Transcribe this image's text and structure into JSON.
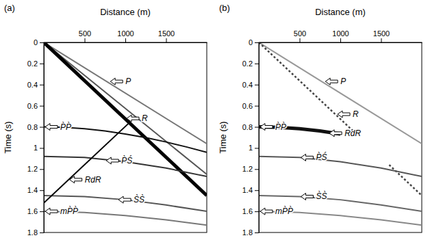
{
  "chart_data": [
    {
      "type": "line",
      "panel_label": "(a)",
      "x_label": "Distance (m)",
      "y_label": "Time (s)",
      "xlim": [
        0,
        2000
      ],
      "xticks": [
        500,
        1000,
        1500
      ],
      "ylim": [
        1.8,
        0
      ],
      "yticks": [
        0,
        0.2,
        0.4,
        0.6,
        0.8,
        1,
        1.2,
        1.4,
        1.6,
        1.8
      ],
      "series": [
        {
          "color": "#777777",
          "line_style": "solid",
          "x": [
            0,
            2000
          ],
          "values": [
            0,
            0.96
          ]
        },
        {
          "color": "#555555",
          "line_style": "solid",
          "x": [
            0,
            2000
          ],
          "values": [
            0,
            1.25
          ]
        },
        {
          "color": "#000000",
          "line_style": "thick",
          "x": [
            0,
            2000
          ],
          "values": [
            0,
            1.45
          ]
        },
        {
          "color": "#111111",
          "line_style": "solid",
          "x": [
            0,
            250,
            500,
            750,
            1000,
            1250,
            1500,
            1750,
            2000
          ],
          "values": [
            0.8,
            0.804,
            0.817,
            0.838,
            0.867,
            0.902,
            0.943,
            0.99,
            1.041
          ]
        },
        {
          "color": "#333333",
          "line_style": "solid",
          "x": [
            0,
            500,
            1000,
            1500,
            2000
          ],
          "values": [
            1.08,
            1.09,
            1.13,
            1.19,
            1.27
          ]
        },
        {
          "color": "#555555",
          "line_style": "solid",
          "x": [
            0,
            500,
            1000,
            1500,
            2000
          ],
          "values": [
            1.45,
            1.46,
            1.49,
            1.54,
            1.6
          ]
        },
        {
          "color": "#777777",
          "line_style": "solid",
          "x": [
            0,
            500,
            1000,
            1500,
            2000
          ],
          "values": [
            1.6,
            1.61,
            1.64,
            1.68,
            1.73
          ]
        },
        {
          "color": "#000000",
          "line_style": "solid",
          "x": [
            0,
            1050
          ],
          "values": [
            1.52,
            0.76
          ]
        }
      ],
      "annotations": [
        {
          "text": "P",
          "x": 800,
          "y": 0.37
        },
        {
          "text": "R",
          "x": 1000,
          "y": 0.72
        },
        {
          "text": "P̀P̀",
          "x": 0,
          "y": 0.8
        },
        {
          "text": "P̀Ś",
          "x": 750,
          "y": 1.12
        },
        {
          "text": "RdR",
          "x": 300,
          "y": 1.3
        },
        {
          "text": "S̀S̀",
          "x": 900,
          "y": 1.49
        },
        {
          "text": "mP̀P̀",
          "x": 0,
          "y": 1.6
        }
      ]
    },
    {
      "type": "line",
      "panel_label": "(b)",
      "x_label": "Distance (m)",
      "y_label": "Time (s)",
      "xlim": [
        0,
        2000
      ],
      "xticks": [
        500,
        1000,
        1500
      ],
      "ylim": [
        1.8,
        0
      ],
      "yticks": [
        0,
        0.2,
        0.4,
        0.6,
        0.8,
        1,
        1.2,
        1.4,
        1.6,
        1.8
      ],
      "series": [
        {
          "color": "#999999",
          "line_style": "solid",
          "x": [
            0,
            2000
          ],
          "values": [
            0,
            0.96
          ]
        },
        {
          "color": "#444444",
          "line_style": "dotted",
          "x": [
            0,
            1200,
            1400,
            1600,
            2000
          ],
          "values": [
            0,
            0.87,
            null,
            1.16,
            1.45
          ]
        },
        {
          "color": "#111111",
          "line_style": "thick",
          "x": [
            0,
            250,
            500,
            750,
            1000
          ],
          "values": [
            0.8,
            0.804,
            0.817,
            0.838,
            0.867
          ]
        },
        {
          "color": "#555555",
          "line_style": "solid",
          "x": [
            0,
            500,
            1000,
            1500,
            2000
          ],
          "values": [
            1.08,
            1.09,
            1.13,
            1.19,
            1.27
          ]
        },
        {
          "color": "#666666",
          "line_style": "solid",
          "x": [
            0,
            500,
            1000,
            1500,
            2000
          ],
          "values": [
            1.45,
            1.46,
            1.49,
            1.54,
            1.6
          ]
        },
        {
          "color": "#888888",
          "line_style": "solid",
          "x": [
            0,
            500,
            1000,
            1500,
            2000
          ],
          "values": [
            1.6,
            1.61,
            1.64,
            1.68,
            1.73
          ]
        }
      ],
      "annotations": [
        {
          "text": "P",
          "x": 800,
          "y": 0.37
        },
        {
          "text": "R",
          "x": 950,
          "y": 0.68
        },
        {
          "text": "P̀P̀",
          "x": 0,
          "y": 0.8
        },
        {
          "text": "RdR",
          "x": 850,
          "y": 0.86
        },
        {
          "text": "P̀Ś",
          "x": 500,
          "y": 1.09
        },
        {
          "text": "S̀S̀",
          "x": 500,
          "y": 1.46
        },
        {
          "text": "mP̀P̀",
          "x": 0,
          "y": 1.6
        }
      ]
    }
  ]
}
